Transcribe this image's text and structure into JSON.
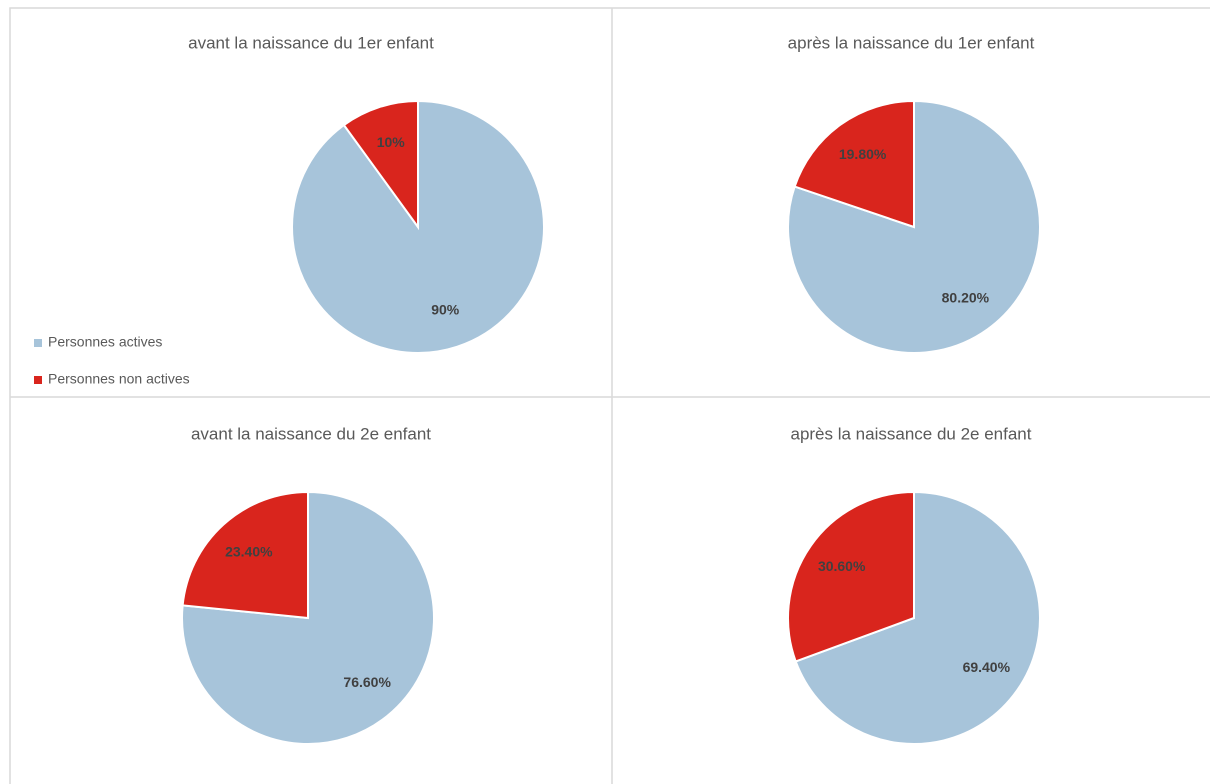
{
  "chart_data": [
    {
      "type": "pie",
      "title": "avant la naissance du 1er enfant",
      "categories": [
        "Personnes actives",
        "Personnes non actives"
      ],
      "values": [
        90,
        10
      ],
      "value_labels": [
        "90%",
        "10%"
      ],
      "colors": [
        "#a7c4da",
        "#d9251d"
      ],
      "legend": "bottom-left"
    },
    {
      "type": "pie",
      "title": "après la naissance du 1er enfant",
      "values": [
        80.2,
        19.8
      ],
      "value_labels": [
        "80.20%",
        "19.80%"
      ],
      "colors": [
        "#a7c4da",
        "#d9251d"
      ]
    },
    {
      "type": "pie",
      "title": "avant la naissance du 2e enfant",
      "values": [
        76.6,
        23.4
      ],
      "value_labels": [
        "76.60%",
        "23.40%"
      ],
      "colors": [
        "#a7c4da",
        "#d9251d"
      ]
    },
    {
      "type": "pie",
      "title": "après la naissance du 2e enfant",
      "values": [
        69.4,
        30.6
      ],
      "value_labels": [
        "69.40%",
        "30.60%"
      ],
      "colors": [
        "#a7c4da",
        "#d9251d"
      ]
    }
  ]
}
